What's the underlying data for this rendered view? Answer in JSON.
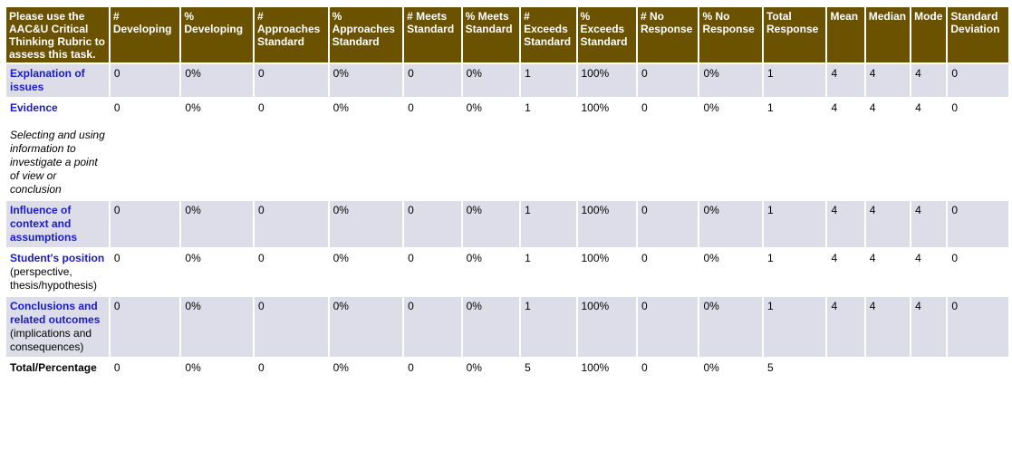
{
  "headers": [
    "Please use the AAC&U Critical Thinking Rubric to assess this task.",
    "# Developing",
    "% Developing",
    "# Approaches Standard",
    "% Approaches Standard",
    "# Meets Standard",
    "% Meets Standard",
    "# Exceeds Standard",
    "% Exceeds Standard",
    "# No Response",
    "% No Response",
    "Total Response",
    "Mean",
    "Median",
    "Mode",
    "Standard Deviation"
  ],
  "rows": [
    {
      "criterion": "Explanation of issues",
      "description": "",
      "values": [
        "0",
        "0%",
        "0",
        "0%",
        "0",
        "0%",
        "1",
        "100%",
        "0",
        "0%",
        "1",
        "4",
        "4",
        "4",
        "0"
      ]
    },
    {
      "criterion": "Evidence",
      "description": "Selecting and using information to investigate a point of view or conclusion",
      "values": [
        "0",
        "0%",
        "0",
        "0%",
        "0",
        "0%",
        "1",
        "100%",
        "0",
        "0%",
        "1",
        "4",
        "4",
        "4",
        "0"
      ]
    },
    {
      "criterion": "Influence of context and assumptions",
      "description": "",
      "values": [
        "0",
        "0%",
        "0",
        "0%",
        "0",
        "0%",
        "1",
        "100%",
        "0",
        "0%",
        "1",
        "4",
        "4",
        "4",
        "0"
      ]
    },
    {
      "criterion": "Student's position",
      "description": "(perspective, thesis/hypothesis)",
      "values": [
        "0",
        "0%",
        "0",
        "0%",
        "0",
        "0%",
        "1",
        "100%",
        "0",
        "0%",
        "1",
        "4",
        "4",
        "4",
        "0"
      ]
    },
    {
      "criterion": "Conclusions and related outcomes",
      "description": "(implications and consequences)",
      "values": [
        "0",
        "0%",
        "0",
        "0%",
        "0",
        "0%",
        "1",
        "100%",
        "0",
        "0%",
        "1",
        "4",
        "4",
        "4",
        "0"
      ]
    }
  ],
  "total": {
    "label": "Total/Percentage",
    "values": [
      "0",
      "0%",
      "0",
      "0%",
      "0",
      "0%",
      "5",
      "100%",
      "0",
      "0%",
      "5",
      "",
      "",
      "",
      ""
    ]
  }
}
